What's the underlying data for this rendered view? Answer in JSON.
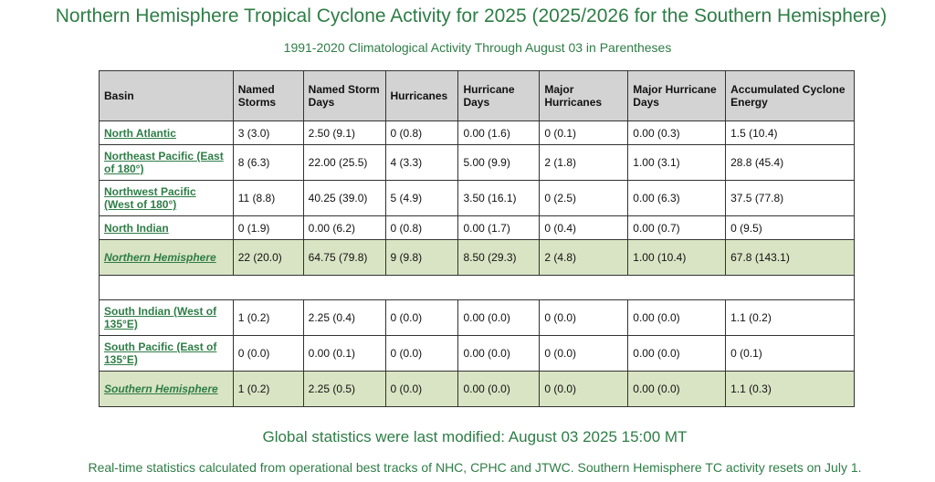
{
  "header": {
    "title": "Northern Hemisphere Tropical Cyclone Activity for 2025 (2025/2026 for the Southern Hemisphere)",
    "subtitle": "1991-2020 Climatological Activity Through August 03 in Parentheses"
  },
  "table": {
    "columns": [
      "Basin",
      "Named Storms",
      "Named Storm Days",
      "Hurricanes",
      "Hurricane Days",
      "Major Hurricanes",
      "Major Hurricane Days",
      "Accumulated Cyclone Energy"
    ],
    "rows": [
      {
        "basin": "North Atlantic",
        "cells": [
          "3 (3.0)",
          "2.50 (9.1)",
          "0 (0.8)",
          "0.00 (1.6)",
          "0 (0.1)",
          "0.00 (0.3)",
          "1.5 (10.4)"
        ]
      },
      {
        "basin": "Northeast Pacific (East of 180°)",
        "cells": [
          "8 (6.3)",
          "22.00 (25.5)",
          "4 (3.3)",
          "5.00 (9.9)",
          "2 (1.8)",
          "1.00 (3.1)",
          "28.8 (45.4)"
        ]
      },
      {
        "basin": "Northwest Pacific (West of 180°)",
        "cells": [
          "11 (8.8)",
          "40.25 (39.0)",
          "5 (4.9)",
          "3.50 (16.1)",
          "0 (2.5)",
          "0.00 (6.3)",
          "37.5 (77.8)"
        ]
      },
      {
        "basin": "North Indian",
        "cells": [
          "0 (1.9)",
          "0.00 (6.2)",
          "0 (0.8)",
          "0.00 (1.7)",
          "0 (0.4)",
          "0.00 (0.7)",
          "0 (9.5)"
        ]
      },
      {
        "basin": "Northern Hemisphere",
        "cells": [
          "22 (20.0)",
          "64.75 (79.8)",
          "9 (9.8)",
          "8.50 (29.3)",
          "2 (4.8)",
          "1.00 (10.4)",
          "67.8 (143.1)"
        ]
      },
      {
        "basin": "South Indian (West of 135°E)",
        "cells": [
          "1 (0.2)",
          "2.25 (0.4)",
          "0 (0.0)",
          "0.00 (0.0)",
          "0 (0.0)",
          "0.00 (0.0)",
          "1.1 (0.2)"
        ]
      },
      {
        "basin": "South Pacific (East of 135°E)",
        "cells": [
          "0 (0.0)",
          "0.00 (0.1)",
          "0 (0.0)",
          "0.00 (0.0)",
          "0 (0.0)",
          "0.00 (0.0)",
          "0 (0.1)"
        ]
      },
      {
        "basin": "Southern Hemisphere",
        "cells": [
          "1 (0.2)",
          "2.25 (0.5)",
          "0 (0.0)",
          "0.00 (0.0)",
          "0 (0.0)",
          "0.00 (0.0)",
          "1.1 (0.3)"
        ]
      }
    ]
  },
  "footer": {
    "modified": "Global statistics were last modified: August 03 2025 15:00 MT",
    "note": "Real-time statistics calculated from operational best tracks of NHC, CPHC and JTWC. Southern Hemisphere TC activity resets on July 1."
  },
  "colors": {
    "text_green": "#2e7d46",
    "header_gray": "#d3d3d3",
    "total_row_green": "#d9e4c4"
  }
}
